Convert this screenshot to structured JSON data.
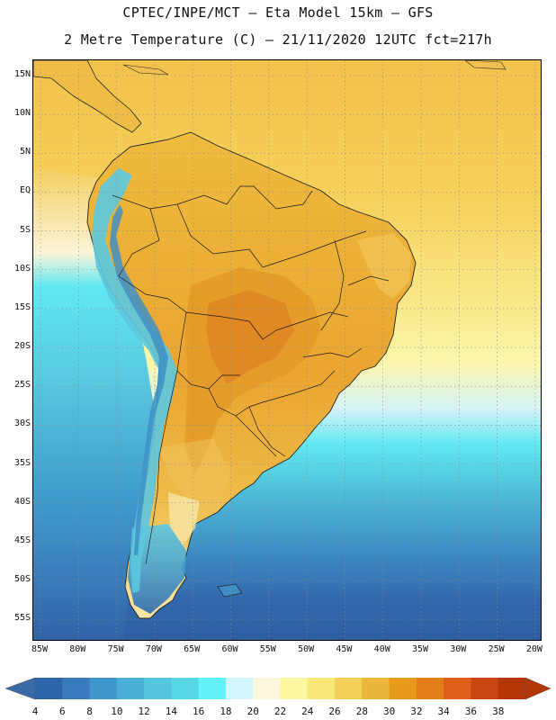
{
  "title": {
    "line1": "CPTEC/INPE/MCT –  Eta Model 15km – GFS",
    "line2": "2 Metre Temperature (C) – 21/11/2020 12UTC fct=217h"
  },
  "lat_labels": [
    "15N",
    "10N",
    "5N",
    "EQ",
    "5S",
    "10S",
    "15S",
    "20S",
    "25S",
    "30S",
    "35S",
    "40S",
    "45S",
    "50S",
    "55S"
  ],
  "lon_labels": [
    "85W",
    "80W",
    "75W",
    "70W",
    "65W",
    "60W",
    "55W",
    "50W",
    "45W",
    "40W",
    "35W",
    "30W",
    "25W",
    "20W"
  ],
  "colorbar": {
    "ticks": [
      "4",
      "6",
      "8",
      "10",
      "12",
      "14",
      "16",
      "18",
      "20",
      "22",
      "24",
      "26",
      "28",
      "30",
      "32",
      "34",
      "36",
      "38"
    ],
    "colors": [
      "#2e64a8",
      "#3a7bbd",
      "#3f97c9",
      "#4bb0d8",
      "#55c6de",
      "#5ad7e6",
      "#62f2f8",
      "#d2f6fb",
      "#fcf8de",
      "#fbf6a0",
      "#f8e877",
      "#f2d05a",
      "#ebb63c",
      "#e89b1b",
      "#e27e1a",
      "#de5f1a",
      "#c94511",
      "#b43608"
    ],
    "low_color": "#3b6aa8",
    "high_color": "#b33606"
  }
}
